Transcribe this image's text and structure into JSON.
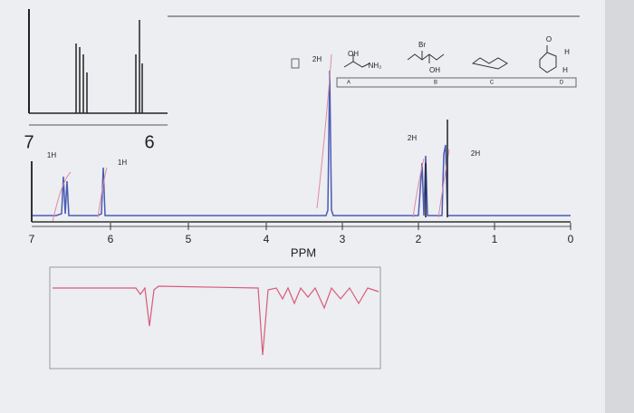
{
  "inset": {
    "axis_labels": [
      7,
      6
    ]
  },
  "spectrum": {
    "x_label": "PPM",
    "ticks": [
      7,
      6,
      5,
      4,
      3,
      2,
      1,
      0
    ],
    "integrations": [
      "1H",
      "1H",
      "2H",
      "2H",
      "2H"
    ]
  },
  "structures": {
    "labels": [
      "A",
      "B",
      "C",
      "D"
    ],
    "atoms": [
      "OH",
      "NH₂",
      "Br",
      "OH",
      "O",
      "H",
      "H"
    ]
  }
}
